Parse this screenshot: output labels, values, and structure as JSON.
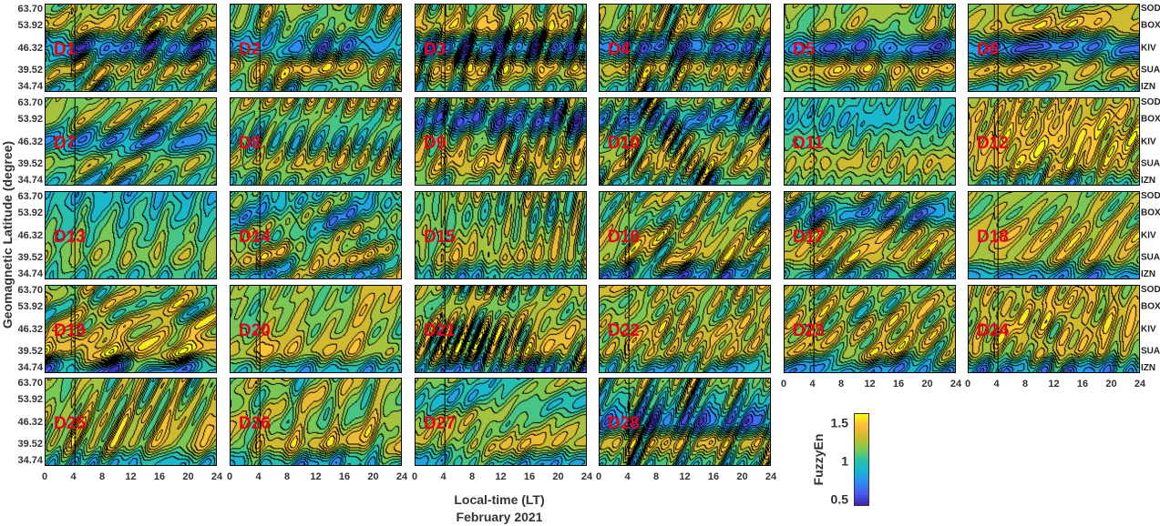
{
  "chart_data": {
    "type": "heatmap",
    "subtype": "filled-contour small multiples",
    "xlabel": "Local-time (LT)",
    "xlabel2": "February 2021",
    "ylabel": "Geomagnetic Latitude (degree)",
    "xlim": [
      0,
      24
    ],
    "x_ticks": [
      "0",
      "4",
      "8",
      "12",
      "16",
      "20",
      "24"
    ],
    "y_ticks": [
      "63.70",
      "53.92",
      "46.32",
      "39.52",
      "34.74"
    ],
    "stations": [
      "SOD",
      "BOX",
      "KIV",
      "SUA",
      "IZN"
    ],
    "colorbar": {
      "label": "FuzzyEn",
      "range": [
        0.45,
        1.6
      ],
      "ticks": [
        "1.5",
        "1",
        "0.5"
      ],
      "colormap": "parula"
    },
    "panel_label_color": "#e8001c",
    "panels": [
      {
        "label": "D1",
        "profile": [
          1.2,
          1.35,
          0.7,
          1.3,
          1.0
        ]
      },
      {
        "label": "D2",
        "profile": [
          1.2,
          1.1,
          0.8,
          1.4,
          1.0
        ]
      },
      {
        "label": "D3",
        "profile": [
          1.2,
          1.4,
          0.7,
          1.4,
          1.0
        ]
      },
      {
        "label": "D4",
        "profile": [
          1.2,
          1.3,
          0.7,
          1.35,
          1.0
        ]
      },
      {
        "label": "D5",
        "profile": [
          1.2,
          1.2,
          0.7,
          1.4,
          1.0
        ]
      },
      {
        "label": "D6",
        "profile": [
          1.2,
          1.4,
          0.7,
          1.35,
          1.0
        ]
      },
      {
        "label": "D7",
        "profile": [
          1.2,
          1.2,
          0.8,
          1.2,
          1.0
        ]
      },
      {
        "label": "D8",
        "profile": [
          1.3,
          1.1,
          1.0,
          1.3,
          1.0
        ]
      },
      {
        "label": "D9",
        "profile": [
          1.2,
          0.7,
          1.2,
          1.4,
          1.1
        ]
      },
      {
        "label": "D10",
        "profile": [
          1.2,
          0.8,
          1.2,
          1.35,
          1.0
        ]
      },
      {
        "label": "D11",
        "profile": [
          1.0,
          0.9,
          1.1,
          1.3,
          1.1
        ]
      },
      {
        "label": "D12",
        "profile": [
          1.3,
          1.4,
          1.45,
          1.4,
          1.0
        ]
      },
      {
        "label": "D13",
        "profile": [
          0.9,
          1.0,
          1.1,
          1.2,
          1.0
        ]
      },
      {
        "label": "D14",
        "profile": [
          1.0,
          1.0,
          1.1,
          1.3,
          1.0
        ]
      },
      {
        "label": "D15",
        "profile": [
          1.2,
          1.1,
          1.2,
          1.3,
          0.9
        ]
      },
      {
        "label": "D16",
        "profile": [
          1.2,
          1.1,
          1.3,
          1.3,
          0.8
        ]
      },
      {
        "label": "D17",
        "profile": [
          1.2,
          0.8,
          1.3,
          1.35,
          0.9
        ]
      },
      {
        "label": "D18",
        "profile": [
          1.2,
          1.2,
          1.35,
          1.3,
          0.8
        ]
      },
      {
        "label": "D19",
        "profile": [
          1.2,
          1.2,
          1.3,
          1.45,
          0.8
        ]
      },
      {
        "label": "D20",
        "profile": [
          1.2,
          1.2,
          1.2,
          1.35,
          0.9
        ]
      },
      {
        "label": "D21",
        "profile": [
          1.2,
          1.2,
          1.3,
          1.35,
          0.8
        ]
      },
      {
        "label": "D22",
        "profile": [
          1.3,
          1.2,
          1.3,
          1.3,
          0.9
        ]
      },
      {
        "label": "D23",
        "profile": [
          1.2,
          1.2,
          1.3,
          1.3,
          0.8
        ]
      },
      {
        "label": "D24",
        "profile": [
          1.3,
          1.35,
          1.35,
          1.3,
          0.8
        ]
      },
      {
        "label": "D25",
        "profile": [
          1.2,
          1.2,
          1.3,
          1.3,
          0.9
        ]
      },
      {
        "label": "D26",
        "profile": [
          1.2,
          1.2,
          1.2,
          1.35,
          0.9
        ]
      },
      {
        "label": "D27",
        "profile": [
          1.1,
          1.0,
          1.2,
          1.3,
          0.9
        ]
      },
      {
        "label": "D28",
        "profile": [
          1.2,
          1.0,
          0.7,
          1.35,
          1.0
        ]
      }
    ]
  }
}
